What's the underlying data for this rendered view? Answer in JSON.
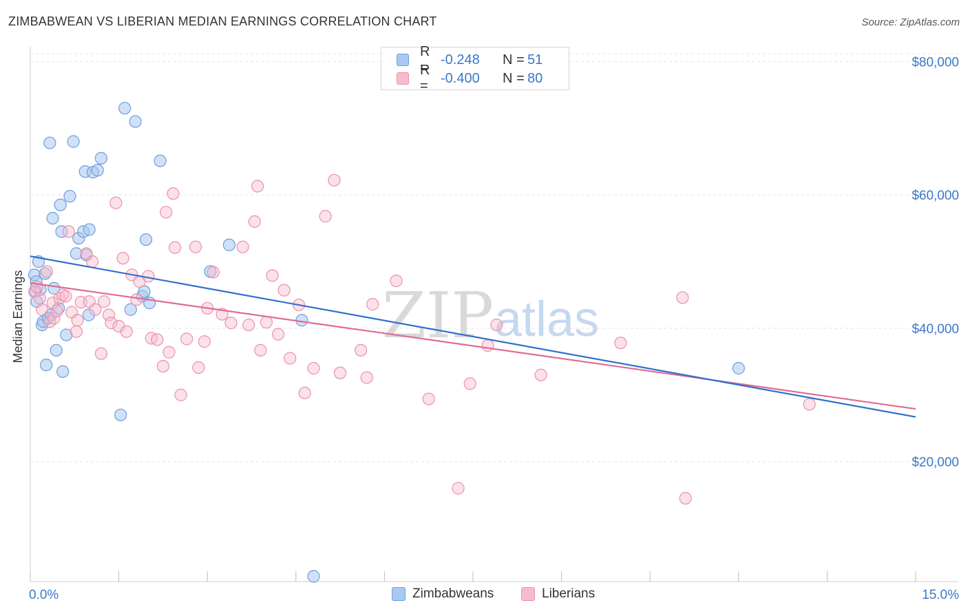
{
  "title": "ZIMBABWEAN VS LIBERIAN MEDIAN EARNINGS CORRELATION CHART",
  "source": "Source: ZipAtlas.com",
  "watermark": {
    "zip": "ZIP",
    "atlas": "atlas"
  },
  "colors": {
    "zimbabwean_fill": "#a9c9f0",
    "zimbabwean_stroke": "#6b9edc",
    "zimbabwean_line": "#2f6fcc",
    "liberian_fill": "#f6bccd",
    "liberian_stroke": "#ec8fac",
    "liberian_line": "#e06a95",
    "axis_text": "#3a78c9",
    "grid": "#e3e3e3"
  },
  "legend": {
    "rows": [
      {
        "r_label": "R =",
        "r_value": "-0.248",
        "n_label": "N =",
        "n_value": "51"
      },
      {
        "r_label": "R =",
        "r_value": "-0.400",
        "n_label": "N =",
        "n_value": "80"
      }
    ]
  },
  "bottom_legend": {
    "zimbabweans": "Zimbabweans",
    "liberians": "Liberians"
  },
  "chart_data": {
    "type": "scatter",
    "title": "ZIMBABWEAN VS LIBERIAN MEDIAN EARNINGS CORRELATION CHART",
    "xlabel": "",
    "ylabel": "Median Earnings",
    "xlim": [
      0,
      15
    ],
    "ylim": [
      2000,
      82000
    ],
    "x_tick_labels": [
      "0.0%",
      "15.0%"
    ],
    "y_ticks": [
      20000,
      40000,
      60000,
      80000
    ],
    "y_tick_labels": [
      "$20,000",
      "$40,000",
      "$60,000",
      "$80,000"
    ],
    "grid": true,
    "legend_position": "top-center",
    "series": [
      {
        "name": "Zimbabweans",
        "r": -0.248,
        "n": 51,
        "trend": {
          "x": [
            0.0,
            15.0
          ],
          "y": [
            50800,
            26700
          ]
        },
        "points": [
          [
            0.07,
            48000
          ],
          [
            0.09,
            45500
          ],
          [
            0.1,
            47000
          ],
          [
            0.11,
            44000
          ],
          [
            0.14,
            50000
          ],
          [
            0.17,
            45800
          ],
          [
            0.2,
            40500
          ],
          [
            0.22,
            41000
          ],
          [
            0.25,
            48200
          ],
          [
            0.27,
            34500
          ],
          [
            0.3,
            41500
          ],
          [
            0.33,
            67800
          ],
          [
            0.35,
            42000
          ],
          [
            0.38,
            56500
          ],
          [
            0.4,
            46000
          ],
          [
            0.44,
            36700
          ],
          [
            0.48,
            43000
          ],
          [
            0.51,
            58500
          ],
          [
            0.53,
            54500
          ],
          [
            0.55,
            33500
          ],
          [
            0.61,
            39000
          ],
          [
            0.67,
            59800
          ],
          [
            0.73,
            68000
          ],
          [
            0.78,
            51200
          ],
          [
            0.82,
            53500
          ],
          [
            0.9,
            54500
          ],
          [
            0.93,
            63500
          ],
          [
            0.95,
            51000
          ],
          [
            0.99,
            42000
          ],
          [
            1.0,
            54800
          ],
          [
            1.06,
            63400
          ],
          [
            1.14,
            63700
          ],
          [
            1.2,
            65500
          ],
          [
            1.53,
            27000
          ],
          [
            1.6,
            73000
          ],
          [
            1.7,
            42800
          ],
          [
            1.78,
            71000
          ],
          [
            1.9,
            44800
          ],
          [
            1.93,
            45500
          ],
          [
            1.96,
            53300
          ],
          [
            2.02,
            43800
          ],
          [
            2.2,
            65100
          ],
          [
            3.05,
            48500
          ],
          [
            3.37,
            52500
          ],
          [
            4.6,
            41200
          ],
          [
            4.8,
            2800
          ],
          [
            12.0,
            34000
          ]
        ]
      },
      {
        "name": "Liberians",
        "r": -0.4,
        "n": 80,
        "trend": {
          "x": [
            0.0,
            15.0
          ],
          "y": [
            46800,
            27900
          ]
        },
        "points": [
          [
            0.07,
            45500
          ],
          [
            0.11,
            46200
          ],
          [
            0.16,
            44500
          ],
          [
            0.2,
            42800
          ],
          [
            0.28,
            48500
          ],
          [
            0.33,
            41000
          ],
          [
            0.38,
            43800
          ],
          [
            0.4,
            41500
          ],
          [
            0.45,
            42600
          ],
          [
            0.5,
            44500
          ],
          [
            0.55,
            45000
          ],
          [
            0.6,
            44800
          ],
          [
            0.65,
            54500
          ],
          [
            0.7,
            42400
          ],
          [
            0.78,
            39500
          ],
          [
            0.8,
            41200
          ],
          [
            0.86,
            43900
          ],
          [
            0.95,
            51200
          ],
          [
            1.0,
            44000
          ],
          [
            1.05,
            50000
          ],
          [
            1.1,
            42800
          ],
          [
            1.2,
            36200
          ],
          [
            1.25,
            44000
          ],
          [
            1.33,
            42000
          ],
          [
            1.37,
            40800
          ],
          [
            1.45,
            58800
          ],
          [
            1.5,
            40300
          ],
          [
            1.57,
            50500
          ],
          [
            1.63,
            39500
          ],
          [
            1.72,
            48000
          ],
          [
            1.8,
            44300
          ],
          [
            1.85,
            47000
          ],
          [
            2.0,
            47800
          ],
          [
            2.05,
            38500
          ],
          [
            2.15,
            38300
          ],
          [
            2.25,
            34300
          ],
          [
            2.3,
            57400
          ],
          [
            2.35,
            36400
          ],
          [
            2.42,
            60200
          ],
          [
            2.45,
            52100
          ],
          [
            2.55,
            30000
          ],
          [
            2.65,
            38400
          ],
          [
            2.8,
            52200
          ],
          [
            2.85,
            34100
          ],
          [
            2.95,
            38000
          ],
          [
            3.0,
            43000
          ],
          [
            3.1,
            48400
          ],
          [
            3.25,
            42100
          ],
          [
            3.4,
            40800
          ],
          [
            3.6,
            52200
          ],
          [
            3.7,
            40500
          ],
          [
            3.8,
            56000
          ],
          [
            3.85,
            61300
          ],
          [
            3.9,
            36700
          ],
          [
            4.0,
            40900
          ],
          [
            4.1,
            47900
          ],
          [
            4.2,
            39100
          ],
          [
            4.3,
            45700
          ],
          [
            4.4,
            35500
          ],
          [
            4.55,
            43500
          ],
          [
            4.65,
            30300
          ],
          [
            4.8,
            34000
          ],
          [
            5.0,
            56800
          ],
          [
            5.15,
            62200
          ],
          [
            5.25,
            33300
          ],
          [
            5.6,
            36700
          ],
          [
            5.7,
            32600
          ],
          [
            5.8,
            43600
          ],
          [
            6.2,
            47100
          ],
          [
            6.75,
            29400
          ],
          [
            7.25,
            16000
          ],
          [
            7.45,
            31700
          ],
          [
            7.75,
            37400
          ],
          [
            7.9,
            40500
          ],
          [
            8.65,
            33000
          ],
          [
            10.0,
            37800
          ],
          [
            11.1,
            14500
          ],
          [
            11.05,
            44600
          ],
          [
            13.2,
            28600
          ]
        ]
      }
    ]
  }
}
